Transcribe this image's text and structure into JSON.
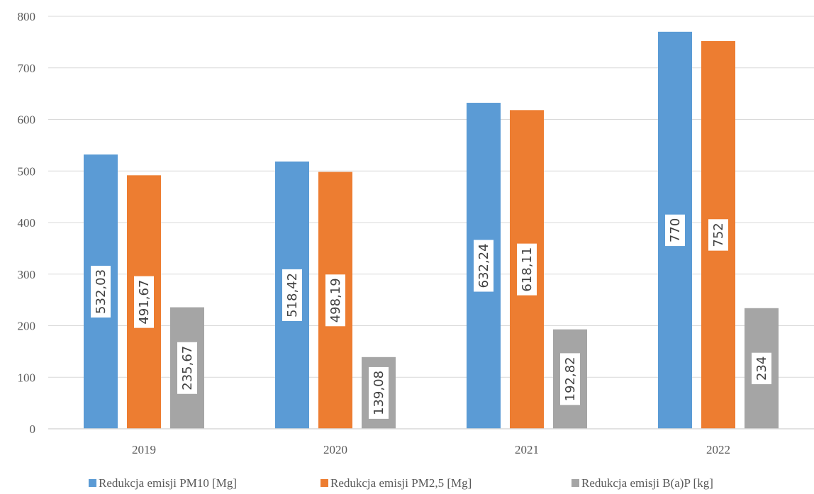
{
  "chart_data": {
    "type": "bar",
    "title": "",
    "xlabel": "",
    "ylabel": "",
    "categories": [
      "2019",
      "2020",
      "2021",
      "2022"
    ],
    "ylim": [
      0,
      800
    ],
    "yticks": [
      0,
      100,
      200,
      300,
      400,
      500,
      600,
      700,
      800
    ],
    "ytick_labels": [
      "0",
      "100",
      "200",
      "300",
      "400",
      "500",
      "600",
      "700",
      "800"
    ],
    "grid": true,
    "legend_position": "bottom",
    "series": [
      {
        "name": "Redukcja emisji PM10 [Mg]",
        "color": "#5B9BD5",
        "values": [
          532.03,
          518.42,
          632.24,
          770
        ],
        "labels": [
          "532,03",
          "518,42",
          "632,24",
          "770"
        ]
      },
      {
        "name": "Redukcja emisji PM2,5 [Mg]",
        "color": "#ED7D31",
        "values": [
          491.67,
          498.19,
          618.11,
          752
        ],
        "labels": [
          "491,67",
          "498,19",
          "618,11",
          "752"
        ]
      },
      {
        "name": "Redukcja emisji B(a)P [kg]",
        "color": "#A5A5A5",
        "values": [
          235.67,
          139.08,
          192.82,
          234
        ],
        "labels": [
          "235,67",
          "139,08",
          "192,82",
          "234"
        ]
      }
    ]
  }
}
